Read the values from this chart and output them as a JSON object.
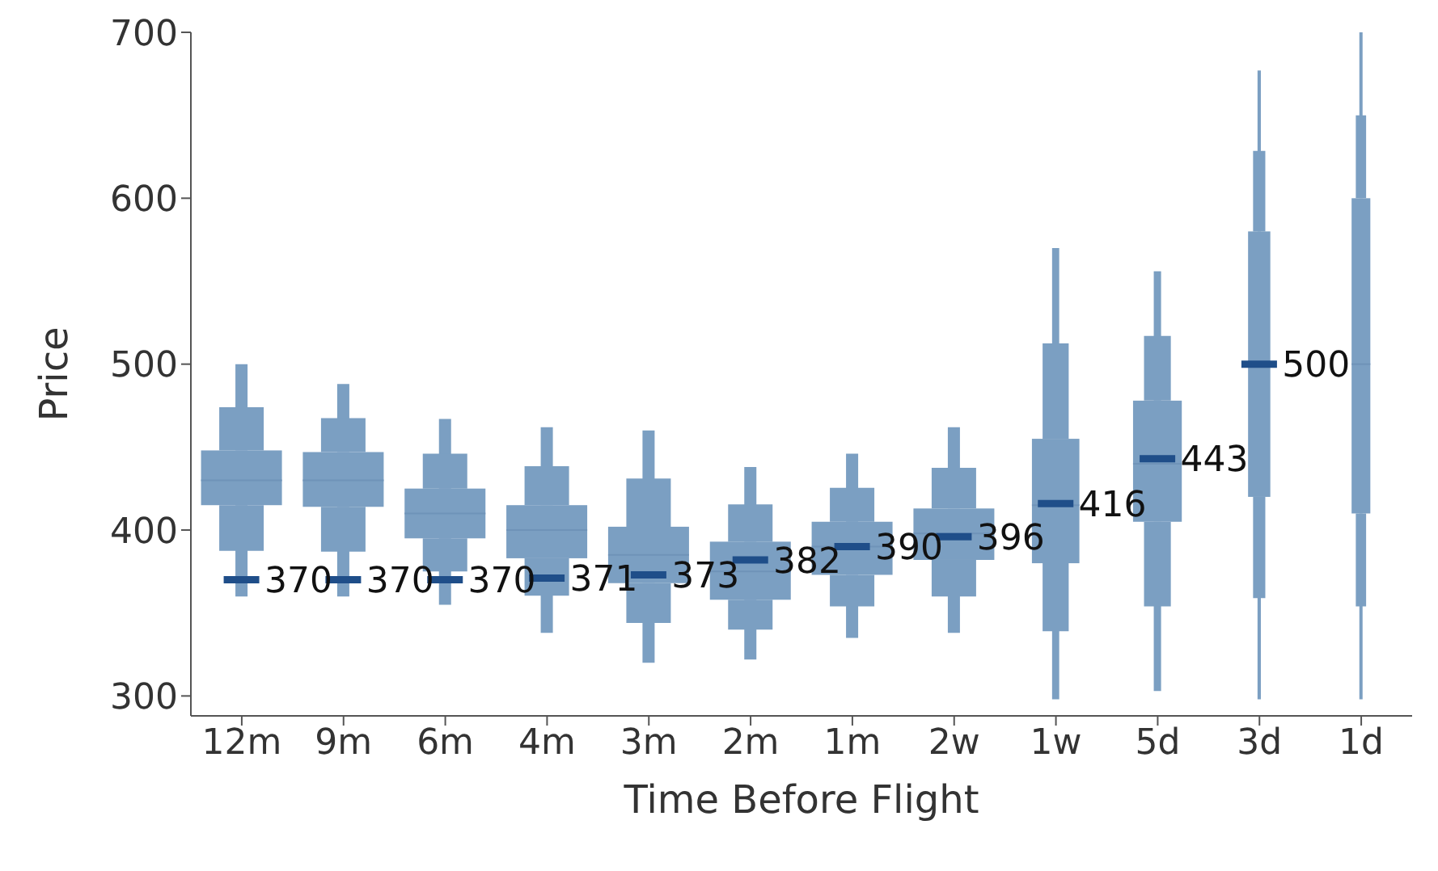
{
  "chart_data": {
    "type": "box",
    "xlabel": "Time Before Flight",
    "ylabel": "Price",
    "categories": [
      "12m",
      "9m",
      "6m",
      "4m",
      "3m",
      "2m",
      "1m",
      "2w",
      "1w",
      "5d",
      "3d",
      "1d"
    ],
    "ylim": [
      288,
      700
    ],
    "yticks": [
      300,
      400,
      500,
      600,
      700
    ],
    "series": [
      {
        "color": "#7b9fc2",
        "boxes": [
          {
            "low": 360,
            "q1": 415,
            "median": 430,
            "q3": 448,
            "high": 500,
            "mean": 370
          },
          {
            "low": 360,
            "q1": 414,
            "median": 430,
            "q3": 447,
            "high": 488,
            "mean": 370
          },
          {
            "low": 355,
            "q1": 395,
            "median": 410,
            "q3": 425,
            "high": 467,
            "mean": 370
          },
          {
            "low": 338,
            "q1": 383,
            "median": 400,
            "q3": 415,
            "high": 462,
            "mean": 371
          },
          {
            "low": 320,
            "q1": 368,
            "median": 385,
            "q3": 402,
            "high": 460,
            "mean": 373
          },
          {
            "low": 322,
            "q1": 358,
            "median": 375,
            "q3": 393,
            "high": 438,
            "mean": 382
          },
          {
            "low": 335,
            "q1": 373,
            "median": 390,
            "q3": 405,
            "high": 446,
            "mean": 390
          },
          {
            "low": 338,
            "q1": 382,
            "median": 398,
            "q3": 413,
            "high": 462,
            "mean": 396
          },
          {
            "low": 298,
            "q1": 380,
            "median": 415,
            "q3": 455,
            "high": 570,
            "mean": 416
          },
          {
            "low": 303,
            "q1": 405,
            "median": 440,
            "q3": 478,
            "high": 556,
            "mean": 443
          },
          {
            "low": 298,
            "q1": 420,
            "median": 500,
            "q3": 580,
            "high": 677,
            "mean": 500
          },
          {
            "low": 298,
            "q1": 410,
            "median": 500,
            "q3": 600,
            "high": 700
          }
        ]
      }
    ],
    "annotations": [
      {
        "text": "370",
        "x": "12m",
        "y": 370
      },
      {
        "text": "370",
        "x": "9m",
        "y": 370
      },
      {
        "text": "370",
        "x": "6m",
        "y": 370
      },
      {
        "text": "371",
        "x": "4m",
        "y": 371
      },
      {
        "text": "373",
        "x": "3m",
        "y": 373
      },
      {
        "text": "382",
        "x": "2m",
        "y": 382
      },
      {
        "text": "390",
        "x": "1m",
        "y": 390
      },
      {
        "text": "396",
        "x": "2w",
        "y": 396
      },
      {
        "text": "416",
        "x": "1w",
        "y": 416
      },
      {
        "text": "443",
        "x": "5d",
        "y": 443
      },
      {
        "text": "500",
        "x": "3d",
        "y": 500
      }
    ]
  }
}
